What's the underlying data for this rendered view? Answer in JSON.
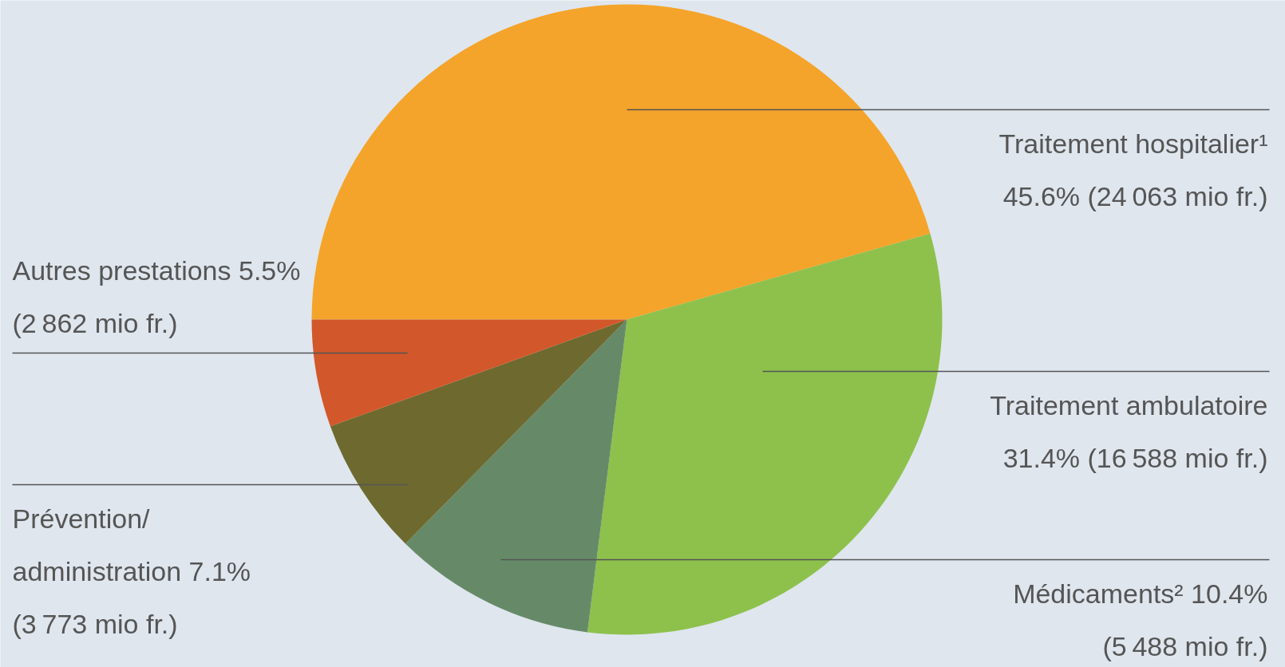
{
  "chart_data": {
    "type": "pie",
    "categories": [
      "Traitement hospitalier¹",
      "Traitement ambulatoire",
      "Médicaments²",
      "Prévention/ administration",
      "Autres prestations"
    ],
    "values": [
      45.6,
      31.4,
      10.4,
      7.1,
      5.5
    ],
    "colors": [
      "#f4a42a",
      "#8dc14c",
      "#668a68",
      "#6e6a2f",
      "#d2572a"
    ],
    "value_labels": [
      "45.6% (24 063 mio fr.)",
      "31.4% (16 588 mio fr.)",
      "10.4% (5 488 mio fr.)",
      "7.1% (3 773 mio fr.)",
      "5.5% (2 862 mio fr.)"
    ]
  }
}
